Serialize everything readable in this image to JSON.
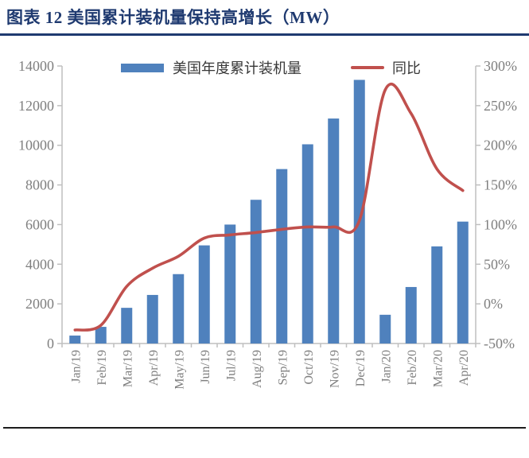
{
  "header": {
    "title": "图表 12 美国累计装机量保持高增长（MW）"
  },
  "chart_data": {
    "type": "bar+line",
    "title": "图表 12 美国累计装机量保持高增长（MW）",
    "categories": [
      "Jan/19",
      "Feb/19",
      "Mar/19",
      "Apr/19",
      "May/19",
      "Jun/19",
      "Jul/19",
      "Aug/19",
      "Sep/19",
      "Oct/19",
      "Nov/19",
      "Dec/19",
      "Jan/20",
      "Feb/20",
      "Mar/20",
      "Apr/20"
    ],
    "series": [
      {
        "name": "美国年度累计装机量",
        "type": "bar",
        "axis": "left",
        "unit": "MW",
        "values": [
          400,
          840,
          1800,
          2450,
          3500,
          4950,
          6000,
          7250,
          8800,
          10050,
          11350,
          13300,
          1450,
          2850,
          4900,
          6150
        ]
      },
      {
        "name": "同比",
        "type": "line",
        "axis": "right",
        "unit": "%",
        "values": [
          -33,
          -27,
          22,
          45,
          60,
          83,
          87,
          90,
          94,
          97,
          97,
          105,
          270,
          240,
          170,
          143
        ]
      }
    ],
    "left_axis": {
      "min": 0,
      "max": 14000,
      "step": 2000,
      "tick_labels": [
        "0",
        "2000",
        "4000",
        "6000",
        "8000",
        "10000",
        "12000",
        "14000"
      ]
    },
    "right_axis": {
      "min": -50,
      "max": 300,
      "step": 50,
      "tick_labels": [
        "-50%",
        "0%",
        "50%",
        "100%",
        "150%",
        "200%",
        "250%",
        "300%"
      ]
    },
    "legend": {
      "position": "top",
      "bar_label": "美国年度累计装机量",
      "line_label": "同比"
    },
    "grid": false,
    "x_tick_rotation": -90
  },
  "colors": {
    "bar": "#4f81bd",
    "line": "#c0504d",
    "title": "#1f3a70",
    "axis": "#bfbfbf",
    "tick_label": "#7f7f7f",
    "bottom_rule": "#1c1c1c"
  }
}
